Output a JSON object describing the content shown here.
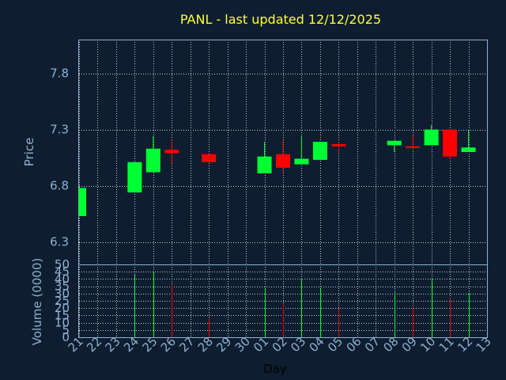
{
  "chart_data": {
    "type": "candlestick",
    "title": "PANL - last updated 12/12/2025",
    "xlabel": "Day",
    "price_panel": {
      "ylabel": "Price",
      "ylim": [
        6.1,
        8.1
      ],
      "yticks": [
        "6.3",
        "6.8",
        "7.3",
        "7.8"
      ],
      "ytick_values": [
        6.3,
        6.8,
        7.3,
        7.8
      ]
    },
    "volume_panel": {
      "ylabel": "Volume (0000)",
      "ylim": [
        0,
        50
      ],
      "yticks": [
        "0",
        "5",
        "10",
        "15",
        "20",
        "25",
        "30",
        "35",
        "40",
        "45",
        "50"
      ],
      "ytick_values": [
        0,
        5,
        10,
        15,
        20,
        25,
        30,
        35,
        40,
        45,
        50
      ]
    },
    "x_labels": [
      "21",
      "22",
      "23",
      "24",
      "25",
      "26",
      "27",
      "28",
      "29",
      "30",
      "01",
      "02",
      "03",
      "04",
      "05",
      "06",
      "07",
      "08",
      "09",
      "10",
      "11",
      "12",
      "13"
    ],
    "candles": [
      {
        "day": "21",
        "open": 6.53,
        "high": 6.78,
        "low": 6.53,
        "close": 6.78,
        "volume": 0
      },
      {
        "day": "24",
        "open": 6.74,
        "high": 7.01,
        "low": 6.74,
        "close": 7.01,
        "volume": 43
      },
      {
        "day": "25",
        "open": 6.92,
        "high": 7.24,
        "low": 6.92,
        "close": 7.13,
        "volume": 45
      },
      {
        "day": "26",
        "open": 7.12,
        "high": 7.21,
        "low": 7.0,
        "close": 7.09,
        "volume": 36
      },
      {
        "day": "28",
        "open": 7.08,
        "high": 7.08,
        "low": 7.01,
        "close": 7.01,
        "volume": 13
      },
      {
        "day": "01",
        "open": 6.91,
        "high": 7.19,
        "low": 6.91,
        "close": 7.06,
        "volume": 34
      },
      {
        "day": "02",
        "open": 7.08,
        "high": 7.2,
        "low": 6.92,
        "close": 6.96,
        "volume": 23
      },
      {
        "day": "03",
        "open": 6.99,
        "high": 7.24,
        "low": 6.99,
        "close": 7.04,
        "volume": 40
      },
      {
        "day": "04",
        "open": 7.03,
        "high": 7.19,
        "low": 7.03,
        "close": 7.19,
        "volume": 34
      },
      {
        "day": "05",
        "open": 7.17,
        "high": 7.19,
        "low": 7.09,
        "close": 7.15,
        "volume": 20
      },
      {
        "day": "08",
        "open": 7.16,
        "high": 7.2,
        "low": 7.1,
        "close": 7.2,
        "volume": 31
      },
      {
        "day": "09",
        "open": 7.15,
        "high": 7.25,
        "low": 7.12,
        "close": 7.14,
        "volume": 21
      },
      {
        "day": "10",
        "open": 7.16,
        "high": 7.34,
        "low": 7.16,
        "close": 7.3,
        "volume": 40
      },
      {
        "day": "11",
        "open": 7.3,
        "high": 7.3,
        "low": 7.04,
        "close": 7.06,
        "volume": 27
      },
      {
        "day": "12",
        "open": 7.1,
        "high": 7.29,
        "low": 7.1,
        "close": 7.14,
        "volume": 30
      }
    ],
    "colors": {
      "background": "#0e1e30",
      "plot_frame": "#8eb0d0",
      "grid": "#c8c8c8",
      "up": "#00ff33",
      "down": "#ff0000",
      "title": "#ffff33",
      "axis_text": "#8eb0d0"
    },
    "grid": true,
    "legend": "none"
  }
}
